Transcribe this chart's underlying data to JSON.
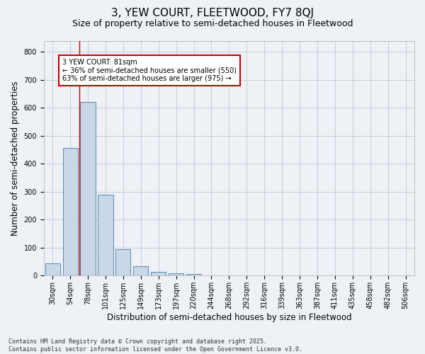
{
  "title": "3, YEW COURT, FLEETWOOD, FY7 8QJ",
  "subtitle": "Size of property relative to semi-detached houses in Fleetwood",
  "xlabel": "Distribution of semi-detached houses by size in Fleetwood",
  "ylabel": "Number of semi-detached properties",
  "categories": [
    "30sqm",
    "54sqm",
    "78sqm",
    "101sqm",
    "125sqm",
    "149sqm",
    "173sqm",
    "197sqm",
    "220sqm",
    "244sqm",
    "268sqm",
    "292sqm",
    "316sqm",
    "339sqm",
    "363sqm",
    "387sqm",
    "411sqm",
    "435sqm",
    "458sqm",
    "482sqm",
    "506sqm"
  ],
  "values": [
    43,
    457,
    620,
    289,
    94,
    35,
    15,
    8,
    5,
    0,
    0,
    0,
    0,
    0,
    0,
    0,
    0,
    0,
    0,
    0,
    0
  ],
  "bar_color": "#c8d8e8",
  "bar_edge_color": "#5a8ab0",
  "grid_color": "#c0c8d0",
  "background_color": "#eef2f7",
  "vline_x": 1.5,
  "vline_color": "#cc0000",
  "annotation_text": "3 YEW COURT: 81sqm\n← 36% of semi-detached houses are smaller (550)\n63% of semi-detached houses are larger (975) →",
  "annotation_box_color": "#ffffff",
  "annotation_box_edge": "#cc0000",
  "ylim": [
    0,
    840
  ],
  "yticks": [
    0,
    100,
    200,
    300,
    400,
    500,
    600,
    700,
    800
  ],
  "footnote": "Contains HM Land Registry data © Crown copyright and database right 2025.\nContains public sector information licensed under the Open Government Licence v3.0.",
  "title_fontsize": 11,
  "subtitle_fontsize": 9,
  "tick_fontsize": 7,
  "label_fontsize": 8.5,
  "annotation_fontsize": 7,
  "footnote_fontsize": 6
}
